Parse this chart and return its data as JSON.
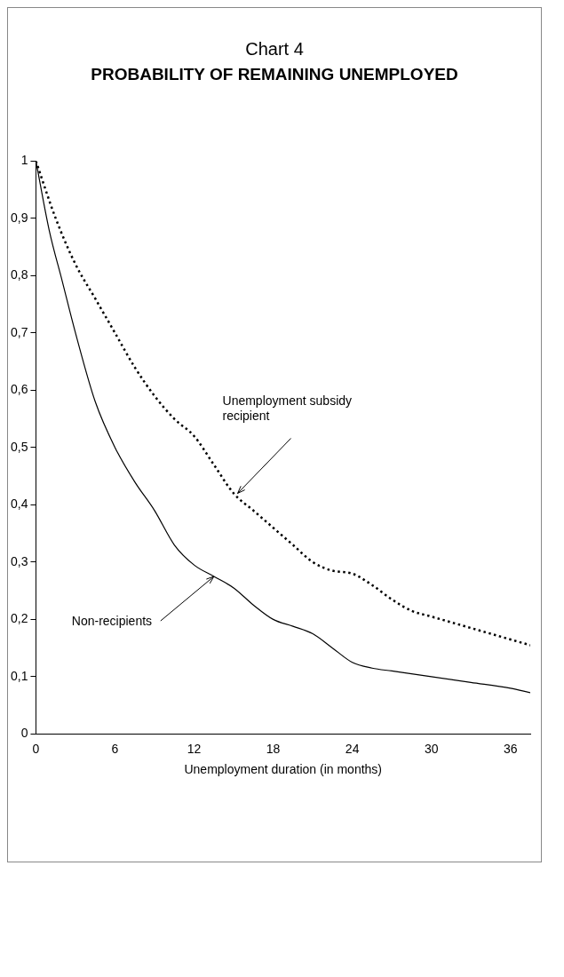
{
  "chart_data": {
    "type": "line",
    "title": "Chart 4",
    "subtitle": "PROBABILITY OF REMAINING UNEMPLOYED",
    "xlabel": "Unemployment duration (in months)",
    "xlim": [
      0,
      37.5
    ],
    "xticks": [
      0,
      6,
      12,
      18,
      24,
      30,
      36
    ],
    "ylim": [
      0,
      1
    ],
    "yticks": [
      0,
      {
        "value": 0.1,
        "label": "0,1"
      },
      {
        "value": 0.2,
        "label": "0,2"
      },
      {
        "value": 0.3,
        "label": "0,3"
      },
      {
        "value": 0.4,
        "label": "0,4"
      },
      {
        "value": 0.5,
        "label": "0,5"
      },
      {
        "value": 0.6,
        "label": "0,6"
      },
      {
        "value": 0.7,
        "label": "0,7"
      },
      {
        "value": 0.8,
        "label": "0,8"
      },
      {
        "value": 0.9,
        "label": "0,9"
      },
      1
    ],
    "grid": false,
    "legend": false,
    "marker": "none",
    "series": [
      {
        "color": "#000000",
        "line_style": "dotted",
        "x": [
          0,
          1.5,
          3,
          4.5,
          6,
          7.5,
          9,
          10.5,
          12,
          13.5,
          15,
          16.5,
          18,
          19.5,
          21,
          22.5,
          24,
          25.5,
          27,
          28.5,
          30,
          33,
          36,
          37.5
        ],
        "values": [
          1,
          0.9,
          0.82,
          0.76,
          0.7,
          0.64,
          0.59,
          0.55,
          0.52,
          0.47,
          0.42,
          0.39,
          0.36,
          0.33,
          0.3,
          0.285,
          0.28,
          0.26,
          0.235,
          0.215,
          0.205,
          0.185,
          0.165,
          0.155
        ]
      },
      {
        "color": "#000000",
        "line_style": "solid",
        "x": [
          0,
          1,
          2,
          3,
          4.5,
          6,
          7.5,
          9,
          10.5,
          12,
          13.5,
          15,
          16.5,
          18,
          19.5,
          21,
          22.5,
          24,
          25.5,
          27,
          30,
          33,
          36,
          37.5
        ],
        "values": [
          1,
          0.88,
          0.79,
          0.7,
          0.58,
          0.5,
          0.44,
          0.39,
          0.33,
          0.295,
          0.275,
          0.255,
          0.225,
          0.2,
          0.188,
          0.175,
          0.15,
          0.125,
          0.115,
          0.11,
          0.1,
          0.09,
          0.08,
          0.072
        ]
      }
    ],
    "annotations": [
      {
        "text": "Unemployment subsidy\nrecipient",
        "x": 15.3,
        "y": 0.42
      },
      {
        "text": "Non-recipients",
        "x": 13.5,
        "y": 0.275
      }
    ]
  }
}
